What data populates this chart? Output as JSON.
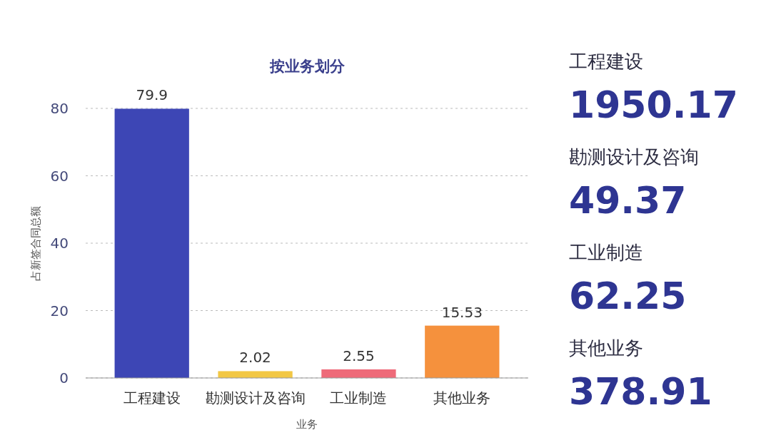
{
  "chart_data": [
    {
      "type": "bar",
      "title": "按业务划分",
      "xlabel": "业务",
      "ylabel": "占新签合同总额",
      "categories": [
        "工程建设",
        "勘测设计及咨询",
        "工业制造",
        "其他业务"
      ],
      "values": [
        79.9,
        2.02,
        2.55,
        15.53
      ],
      "colors": [
        "#3d46b5",
        "#f2c744",
        "#ee6a79",
        "#f5913d"
      ],
      "ylim": [
        0,
        80
      ],
      "yticks": [
        0,
        20,
        40,
        60,
        80
      ],
      "grid": "y",
      "data_labels": true
    },
    {
      "type": "other",
      "categories": [
        "工程建设",
        "勘测设计及咨询",
        "工业制造",
        "其他业务"
      ],
      "values": [
        1950.17,
        49.37,
        62.25,
        378.91
      ],
      "color": "#2e3592",
      "data_labels": true
    }
  ]
}
